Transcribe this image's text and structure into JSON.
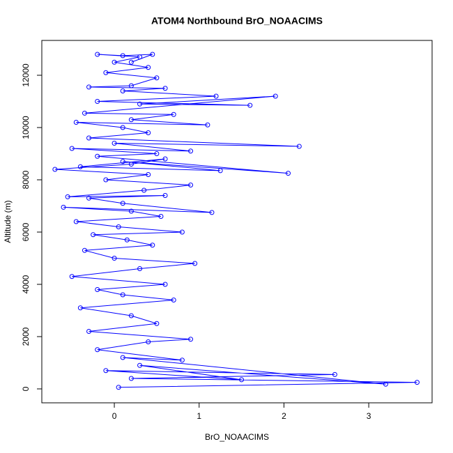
{
  "chart_data": {
    "type": "line",
    "title": "ATOM4 Northbound BrO_NOAACIMS",
    "x_label": "BrO_NOAACIMS",
    "y_label": "Altitude (m)",
    "series": [
      {
        "color": "#0000ff",
        "x": [
          0.05,
          3.57,
          0.2,
          2.6,
          -0.1,
          1.5,
          0.3,
          3.2,
          0.1,
          0.8,
          -0.2,
          0.4,
          0.9,
          -0.3,
          0.5,
          0.2,
          -0.4,
          0.7,
          0.1,
          -0.2,
          0.6,
          -0.5,
          0.3,
          0.95,
          0.0,
          -0.35,
          0.45,
          0.15,
          -0.25,
          0.8,
          0.05,
          -0.45,
          0.55,
          0.2,
          -0.6,
          1.15,
          0.1,
          -0.3,
          0.6,
          -0.55,
          0.35,
          0.9,
          -0.1,
          0.4,
          -0.7,
          0.2,
          0.6,
          -0.4,
          1.25,
          0.1,
          2.05,
          -0.2,
          0.5,
          -0.5,
          0.9,
          0.0,
          2.18,
          -0.3,
          0.4,
          0.1,
          -0.45,
          1.1,
          0.2,
          0.7,
          -0.35,
          1.9,
          0.3,
          1.6,
          -0.2,
          1.2,
          0.1,
          0.6,
          -0.3,
          0.2,
          0.5,
          -0.1,
          0.4,
          0.0,
          0.3,
          -0.2,
          0.1,
          0.45,
          0.2
        ],
        "values": [
          60,
          250,
          400,
          550,
          700,
          350,
          900,
          180,
          1200,
          1100,
          1500,
          1800,
          1900,
          2200,
          2500,
          2800,
          3100,
          3400,
          3600,
          3800,
          4000,
          4300,
          4600,
          4800,
          5000,
          5300,
          5500,
          5700,
          5900,
          6000,
          6200,
          6400,
          6600,
          6800,
          6950,
          6750,
          7100,
          7300,
          7400,
          7350,
          7600,
          7800,
          8000,
          8200,
          8400,
          8600,
          8800,
          8500,
          8350,
          8700,
          8250,
          8900,
          9000,
          9200,
          9100,
          9400,
          9280,
          9600,
          9800,
          10000,
          10200,
          10100,
          10300,
          10500,
          10550,
          11200,
          10900,
          10850,
          11000,
          11200,
          11400,
          11500,
          11550,
          11600,
          11900,
          12100,
          12300,
          12500,
          12700,
          12800,
          12750,
          12800,
          12500
        ]
      }
    ],
    "xlim": [
      -0.855,
      3.747
    ],
    "xticks": [
      0,
      1,
      2,
      3
    ],
    "ylim": [
      -533,
      13333
    ],
    "yticks": [
      0,
      2000,
      4000,
      6000,
      8000,
      10000,
      12000
    ]
  }
}
